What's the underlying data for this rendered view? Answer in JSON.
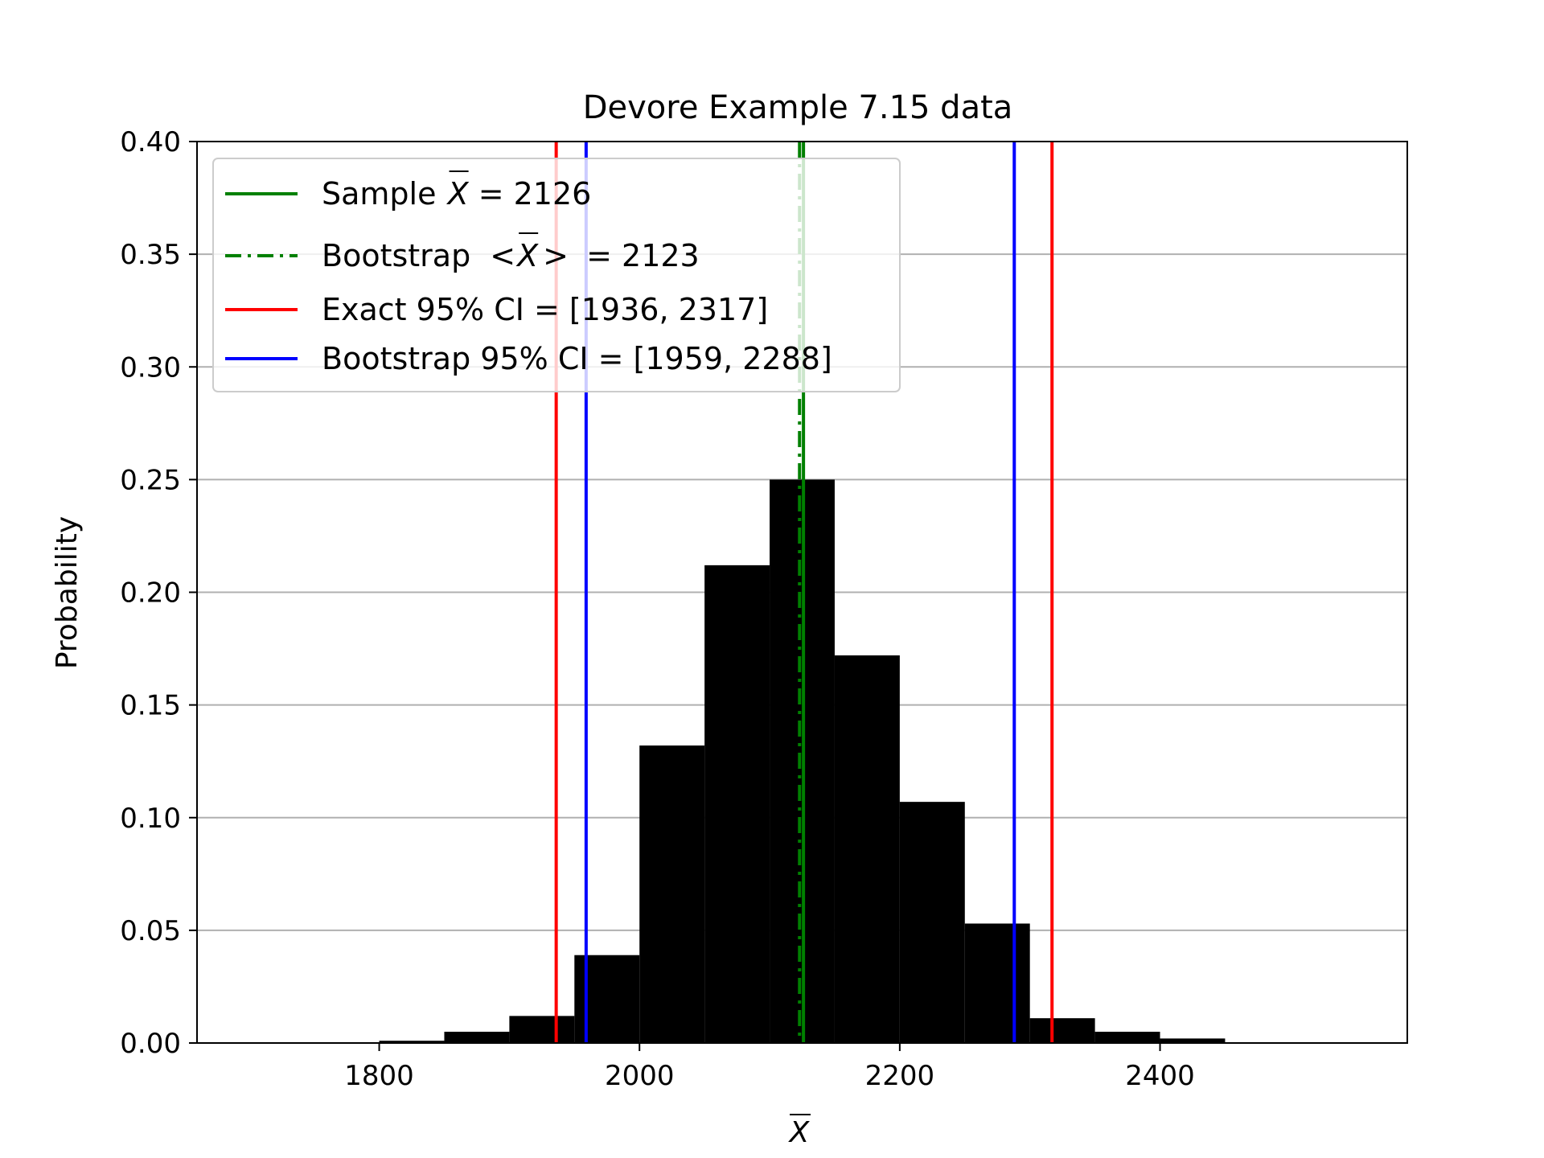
{
  "chart_data": {
    "type": "bar",
    "title": "Devore Example 7.15 data",
    "xlabel": "X",
    "ylabel": "Probability",
    "xlim": [
      1660,
      2590
    ],
    "ylim": [
      0,
      0.4
    ],
    "grid": "horizontal",
    "legend_position": "top-left",
    "x_ticks": [
      1800,
      2000,
      2200,
      2400
    ],
    "y_ticks": [
      0.0,
      0.05,
      0.1,
      0.15,
      0.2,
      0.25,
      0.3,
      0.35,
      0.4
    ],
    "x_tick_labels": [
      "1800",
      "2000",
      "2200",
      "2400"
    ],
    "y_tick_labels": [
      "0.00",
      "0.05",
      "0.10",
      "0.15",
      "0.20",
      "0.25",
      "0.30",
      "0.35",
      "0.40"
    ],
    "histogram": {
      "color": "#000000",
      "bins": [
        {
          "x0": 1800,
          "x1": 1850,
          "p": 0.001
        },
        {
          "x0": 1850,
          "x1": 1900,
          "p": 0.005
        },
        {
          "x0": 1900,
          "x1": 1950,
          "p": 0.012
        },
        {
          "x0": 1950,
          "x1": 2000,
          "p": 0.039
        },
        {
          "x0": 2000,
          "x1": 2050,
          "p": 0.132
        },
        {
          "x0": 2050,
          "x1": 2100,
          "p": 0.212
        },
        {
          "x0": 2100,
          "x1": 2150,
          "p": 0.25
        },
        {
          "x0": 2150,
          "x1": 2200,
          "p": 0.172
        },
        {
          "x0": 2200,
          "x1": 2250,
          "p": 0.107
        },
        {
          "x0": 2250,
          "x1": 2300,
          "p": 0.053
        },
        {
          "x0": 2300,
          "x1": 2350,
          "p": 0.011
        },
        {
          "x0": 2350,
          "x1": 2400,
          "p": 0.005
        },
        {
          "x0": 2400,
          "x1": 2450,
          "p": 0.002
        }
      ]
    },
    "vlines": [
      {
        "name": "Sample X = 2126",
        "x": 2126,
        "color": "#008000",
        "style": "solid"
      },
      {
        "name": "Bootstrap <X> = 2123",
        "x": 2123,
        "color": "#008000",
        "style": "dashdot"
      },
      {
        "name": "Exact 95% CI = [1936, 2317]",
        "x": [
          1936,
          2317
        ],
        "color": "#ff0000",
        "style": "solid"
      },
      {
        "name": "Bootstrap 95% CI = [1959, 2288]",
        "x": [
          1959,
          2288
        ],
        "color": "#0000ff",
        "style": "solid"
      }
    ],
    "legend": [
      {
        "prefix": "Sample ",
        "sym": "X",
        "lt": "",
        "gt": "",
        "suffix": " = 2126",
        "color": "#008000",
        "style": "solid"
      },
      {
        "prefix": "Bootstrap ",
        "sym": "X",
        "lt": "<",
        "gt": ">",
        "suffix": " = 2123",
        "color": "#008000",
        "style": "dashdot"
      },
      {
        "prefix": "Exact 95% CI = [1936, 2317]",
        "sym": "",
        "lt": "",
        "gt": "",
        "suffix": "",
        "color": "#ff0000",
        "style": "solid"
      },
      {
        "prefix": "Bootstrap 95% CI = [1959, 2288]",
        "sym": "",
        "lt": "",
        "gt": "",
        "suffix": "",
        "color": "#0000ff",
        "style": "solid"
      }
    ]
  }
}
